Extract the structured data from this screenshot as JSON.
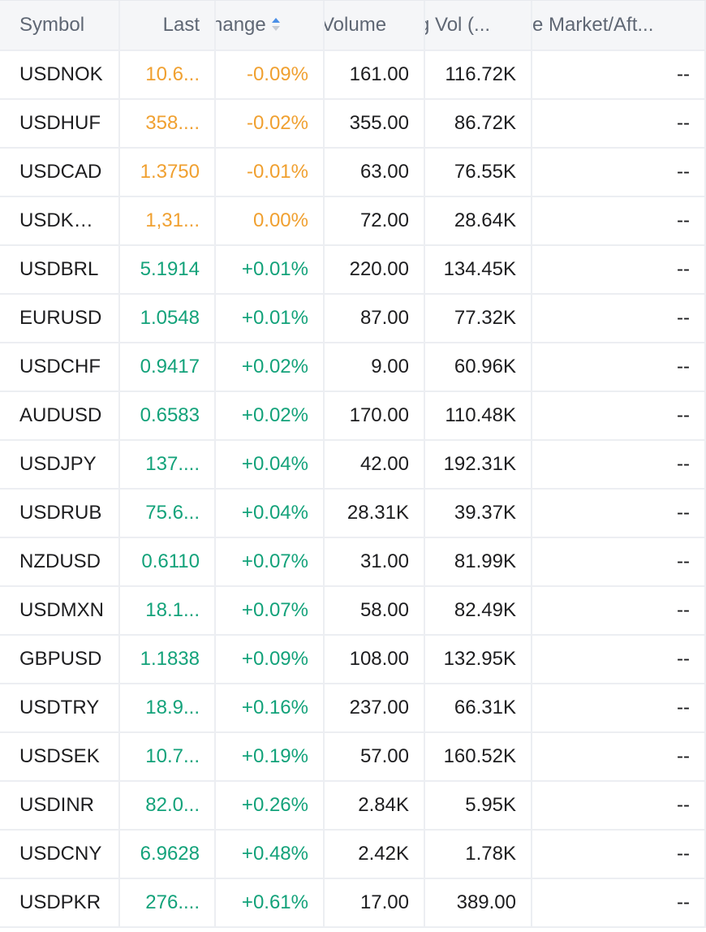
{
  "columns": {
    "symbol": "Symbol",
    "last": "Last",
    "change": "hange",
    "volume": "Volume",
    "avg_vol": "g Vol (...",
    "pre_market": "re Market/Aft..."
  },
  "colors": {
    "negative": "#f0a030",
    "positive": "#13a27a"
  },
  "rows": [
    {
      "symbol": "USDNOK",
      "last": "10.6...",
      "change": "-0.09%",
      "volume": "161.00",
      "avg_vol": "116.72K",
      "pre_market": "--",
      "dir": "neg"
    },
    {
      "symbol": "USDHUF",
      "last": "358....",
      "change": "-0.02%",
      "volume": "355.00",
      "avg_vol": "86.72K",
      "pre_market": "--",
      "dir": "neg"
    },
    {
      "symbol": "USDCAD",
      "last": "1.3750",
      "change": "-0.01%",
      "volume": "63.00",
      "avg_vol": "76.55K",
      "pre_market": "--",
      "dir": "neg"
    },
    {
      "symbol": "USDKRW",
      "last": "1,31...",
      "change": "0.00%",
      "volume": "72.00",
      "avg_vol": "28.64K",
      "pre_market": "--",
      "dir": "neg"
    },
    {
      "symbol": "USDBRL",
      "last": "5.1914",
      "change": "+0.01%",
      "volume": "220.00",
      "avg_vol": "134.45K",
      "pre_market": "--",
      "dir": "pos"
    },
    {
      "symbol": "EURUSD",
      "last": "1.0548",
      "change": "+0.01%",
      "volume": "87.00",
      "avg_vol": "77.32K",
      "pre_market": "--",
      "dir": "pos"
    },
    {
      "symbol": "USDCHF",
      "last": "0.9417",
      "change": "+0.02%",
      "volume": "9.00",
      "avg_vol": "60.96K",
      "pre_market": "--",
      "dir": "pos"
    },
    {
      "symbol": "AUDUSD",
      "last": "0.6583",
      "change": "+0.02%",
      "volume": "170.00",
      "avg_vol": "110.48K",
      "pre_market": "--",
      "dir": "pos"
    },
    {
      "symbol": "USDJPY",
      "last": "137....",
      "change": "+0.04%",
      "volume": "42.00",
      "avg_vol": "192.31K",
      "pre_market": "--",
      "dir": "pos"
    },
    {
      "symbol": "USDRUB",
      "last": "75.6...",
      "change": "+0.04%",
      "volume": "28.31K",
      "avg_vol": "39.37K",
      "pre_market": "--",
      "dir": "pos"
    },
    {
      "symbol": "NZDUSD",
      "last": "0.6110",
      "change": "+0.07%",
      "volume": "31.00",
      "avg_vol": "81.99K",
      "pre_market": "--",
      "dir": "pos"
    },
    {
      "symbol": "USDMXN",
      "last": "18.1...",
      "change": "+0.07%",
      "volume": "58.00",
      "avg_vol": "82.49K",
      "pre_market": "--",
      "dir": "pos"
    },
    {
      "symbol": "GBPUSD",
      "last": "1.1838",
      "change": "+0.09%",
      "volume": "108.00",
      "avg_vol": "132.95K",
      "pre_market": "--",
      "dir": "pos"
    },
    {
      "symbol": "USDTRY",
      "last": "18.9...",
      "change": "+0.16%",
      "volume": "237.00",
      "avg_vol": "66.31K",
      "pre_market": "--",
      "dir": "pos"
    },
    {
      "symbol": "USDSEK",
      "last": "10.7...",
      "change": "+0.19%",
      "volume": "57.00",
      "avg_vol": "160.52K",
      "pre_market": "--",
      "dir": "pos"
    },
    {
      "symbol": "USDINR",
      "last": "82.0...",
      "change": "+0.26%",
      "volume": "2.84K",
      "avg_vol": "5.95K",
      "pre_market": "--",
      "dir": "pos"
    },
    {
      "symbol": "USDCNY",
      "last": "6.9628",
      "change": "+0.48%",
      "volume": "2.42K",
      "avg_vol": "1.78K",
      "pre_market": "--",
      "dir": "pos"
    },
    {
      "symbol": "USDPKR",
      "last": "276....",
      "change": "+0.61%",
      "volume": "17.00",
      "avg_vol": "389.00",
      "pre_market": "--",
      "dir": "pos"
    }
  ]
}
